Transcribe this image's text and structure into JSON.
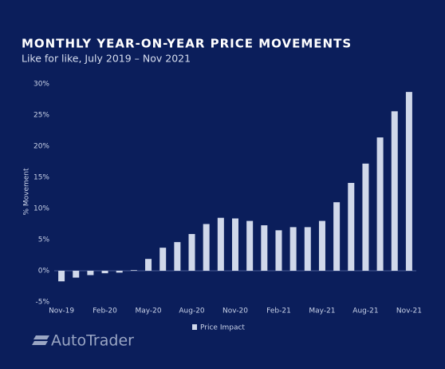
{
  "chart_data": {
    "type": "bar",
    "title": "MONTHLY YEAR-ON-YEAR PRICE MOVEMENTS",
    "subtitle": "Like for like, July 2019 – Nov 2021",
    "y_label": "% Movement",
    "categories": [
      "Nov-19",
      null,
      null,
      "Feb-20",
      null,
      null,
      "May-20",
      null,
      null,
      "Aug-20",
      null,
      null,
      "Nov-20",
      null,
      null,
      "Feb-21",
      null,
      null,
      "May-21",
      null,
      null,
      "Aug-21",
      null,
      null,
      "Nov-21"
    ],
    "series": [
      {
        "name": "Price Impact",
        "color": "#d0d8ea",
        "values": [
          -1.7,
          -1.1,
          -0.7,
          -0.4,
          -0.3,
          0.1,
          1.9,
          3.7,
          4.6,
          5.9,
          7.5,
          8.5,
          8.4,
          8.0,
          7.3,
          6.5,
          7.0,
          7.0,
          8.0,
          11.0,
          14.1,
          17.2,
          21.4,
          25.6,
          28.7
        ]
      }
    ],
    "ylim": [
      -5,
      30
    ],
    "yticks": [
      {
        "value": -5,
        "label": "-5%"
      },
      {
        "value": 0,
        "label": "0%"
      },
      {
        "value": 5,
        "label": "5%"
      },
      {
        "value": 10,
        "label": "10%"
      },
      {
        "value": 15,
        "label": "15%"
      },
      {
        "value": 20,
        "label": "20%"
      },
      {
        "value": 25,
        "label": "25%"
      },
      {
        "value": 30,
        "label": "30%"
      }
    ],
    "grid": false
  },
  "logo": "AutoTrader"
}
